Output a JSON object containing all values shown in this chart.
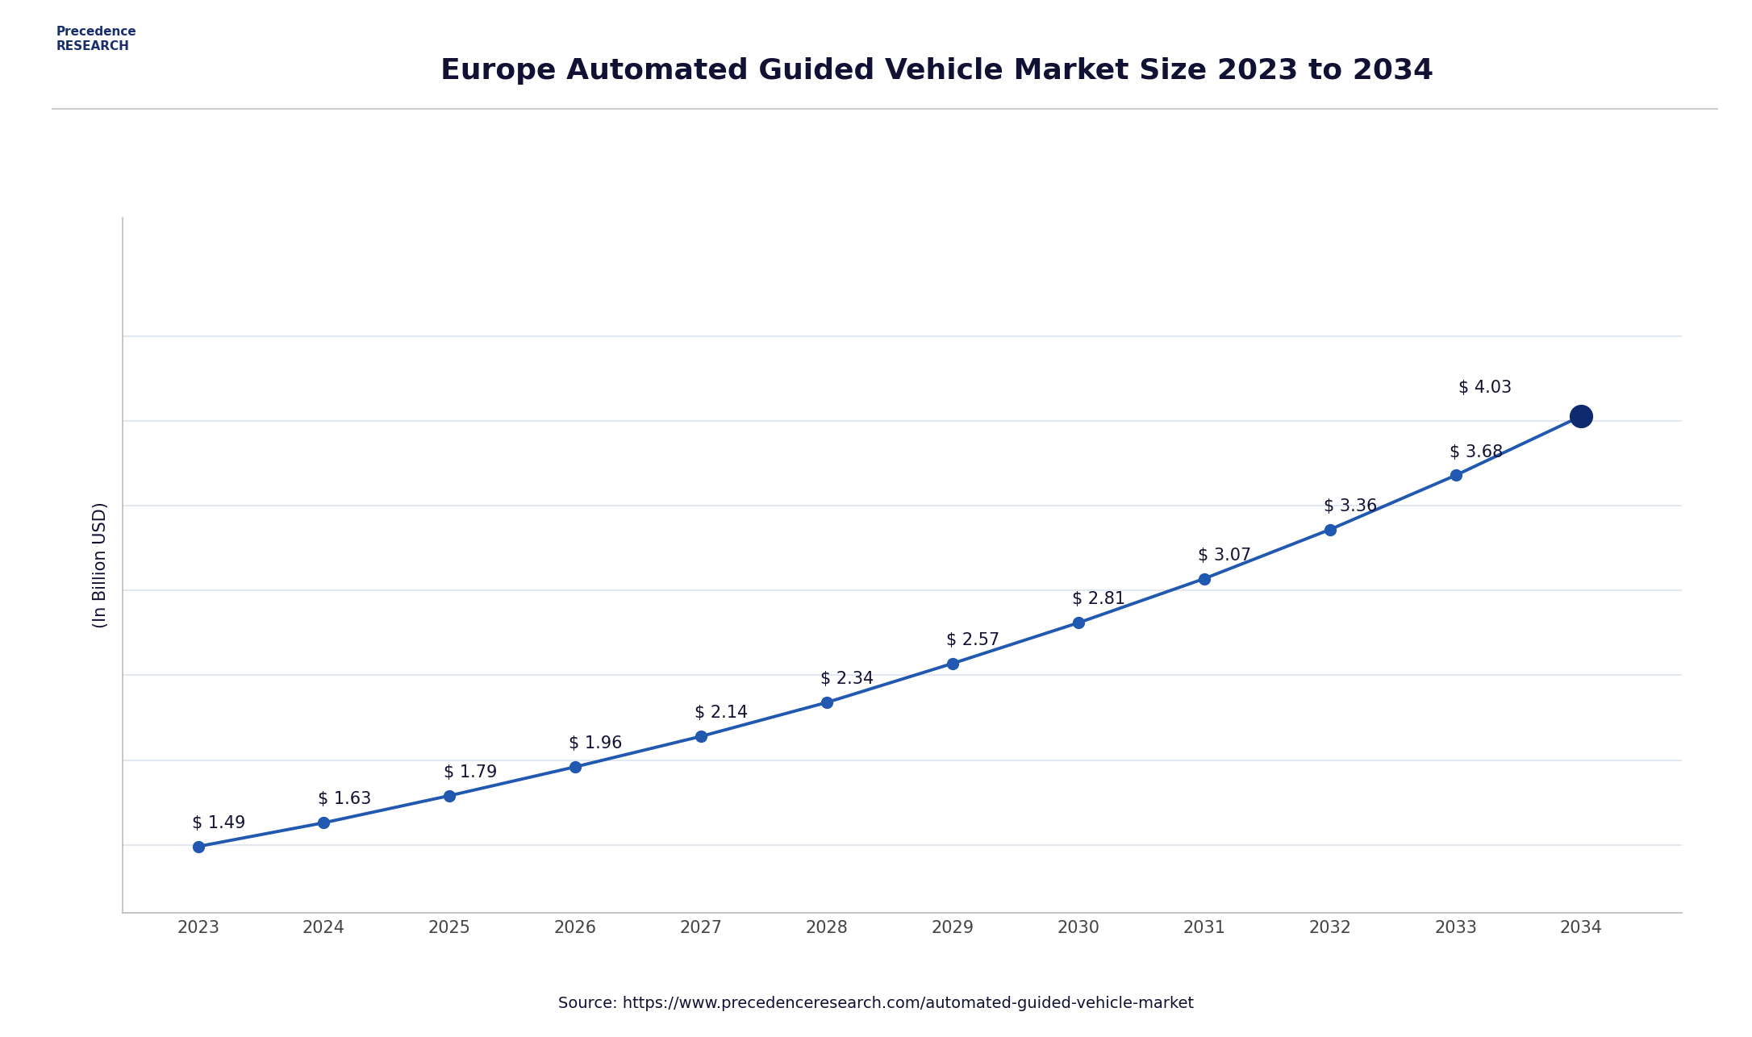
{
  "title": "Europe Automated Guided Vehicle Market Size 2023 to 2034",
  "ylabel": "(In Billion USD)",
  "source_text": "Source: https://www.precedenceresearch.com/automated-guided-vehicle-market",
  "years": [
    2023,
    2024,
    2025,
    2026,
    2027,
    2028,
    2029,
    2030,
    2031,
    2032,
    2033,
    2034
  ],
  "values": [
    1.49,
    1.63,
    1.79,
    1.96,
    2.14,
    2.34,
    2.57,
    2.81,
    3.07,
    3.36,
    3.68,
    4.03
  ],
  "labels": [
    "$ 1.49",
    "$ 1.63",
    "$ 1.79",
    "$ 1.96",
    "$ 2.14",
    "$ 2.34",
    "$ 2.57",
    "$ 2.81",
    "$ 3.07",
    "$ 3.36",
    "$ 3.68",
    "$ 4.03"
  ],
  "line_color": "#2158b0",
  "marker_color": "#2158b0",
  "last_marker_color": "#0d2b6e",
  "background_color": "#ffffff",
  "plot_bg_color": "#ffffff",
  "grid_color": "#dde4f0",
  "title_color": "#111133",
  "label_color": "#111133",
  "source_color": "#111133",
  "ylabel_color": "#111133",
  "ylim_min": 1.1,
  "ylim_max": 5.2,
  "yticks": [
    1.5,
    2.0,
    2.5,
    3.0,
    3.5,
    4.0,
    4.5
  ],
  "title_fontsize": 26,
  "label_fontsize": 15,
  "ylabel_fontsize": 15,
  "source_fontsize": 14,
  "tick_fontsize": 15
}
